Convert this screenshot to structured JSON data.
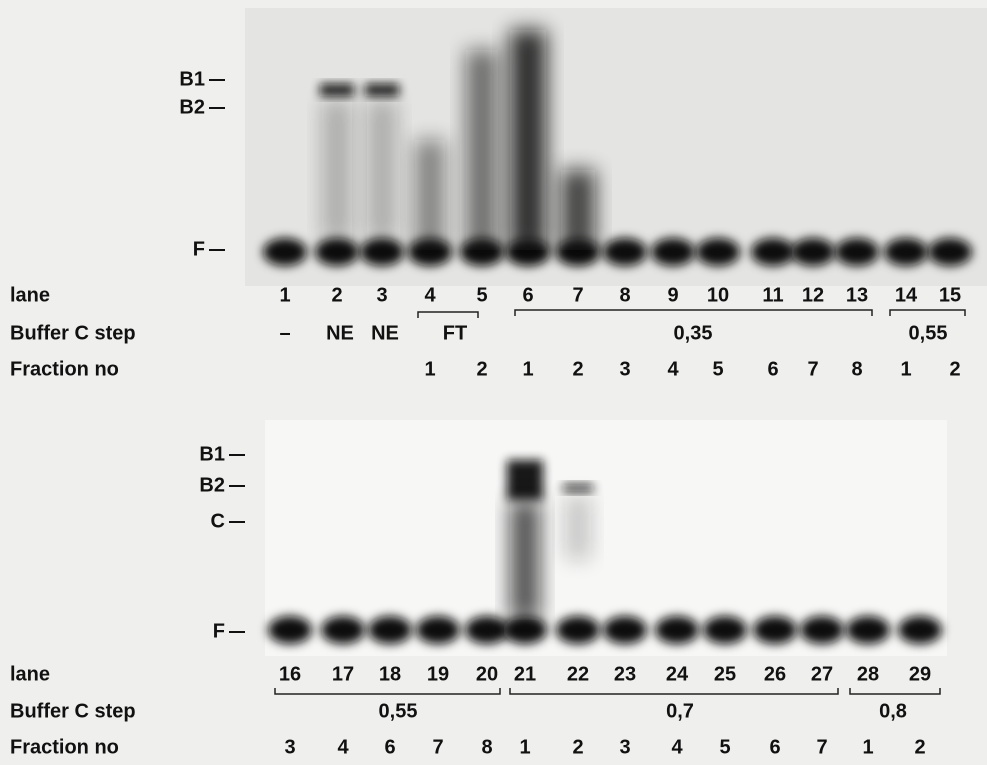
{
  "top": {
    "markers": [
      "B1",
      "B2",
      "F"
    ],
    "row_labels": [
      "lane",
      "Buffer C step",
      "Fraction no"
    ],
    "lanes": [
      "1",
      "2",
      "3",
      "4",
      "5",
      "6",
      "7",
      "8",
      "9",
      "10",
      "11",
      "12",
      "13",
      "14",
      "15"
    ],
    "buffer_steps": [
      "–",
      "NE",
      "NE",
      "FT",
      "0,35",
      "0,55"
    ],
    "fractions": [
      "1",
      "2",
      "1",
      "2",
      "3",
      "4",
      "5",
      "6",
      "7",
      "8",
      "1",
      "2"
    ]
  },
  "bottom": {
    "markers": [
      "B1",
      "B2",
      "C",
      "F"
    ],
    "row_labels": [
      "lane",
      "Buffer C step",
      "Fraction no"
    ],
    "lanes": [
      "16",
      "17",
      "18",
      "19",
      "20",
      "21",
      "22",
      "23",
      "24",
      "25",
      "26",
      "27",
      "28",
      "29"
    ],
    "buffer_steps": [
      "0,55",
      "0,7",
      "0,8"
    ],
    "fractions": [
      "3",
      "4",
      "6",
      "7",
      "8",
      "1",
      "2",
      "3",
      "4",
      "5",
      "6",
      "7",
      "1",
      "2"
    ]
  }
}
